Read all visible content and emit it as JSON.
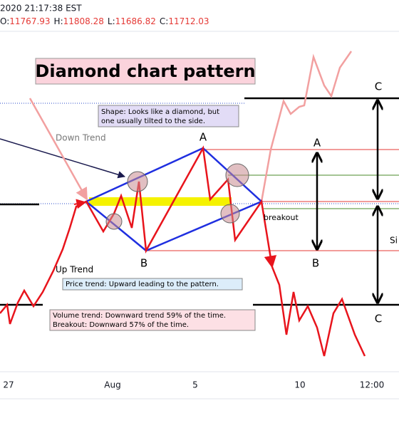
{
  "header": {
    "datetime": "2020 21:17:38 EST",
    "ohlc": [
      {
        "label": "O:",
        "value": "11767.93"
      },
      {
        "label": "H:",
        "value": "11808.28"
      },
      {
        "label": "L:",
        "value": "11686.82"
      },
      {
        "label": "C:",
        "value": "11712.03"
      }
    ]
  },
  "title": "Diamond chart pattern",
  "notes": {
    "shape": [
      "Shape: Looks like a diamond, but",
      "one usually tilted to the side."
    ],
    "price_trend": "Price trend: Upward leading to the pattern.",
    "volume": [
      "Volume trend: Downward trend 59% of the time.",
      "Breakout: Downward 57% of the time."
    ]
  },
  "labels": {
    "down_trend": "Down Trend",
    "up_trend": "Up Trend",
    "breakout": "breakout",
    "diamond_top": "A",
    "diamond_bottom": "B",
    "height_top": "A",
    "height_bottom": "B",
    "target_top": "C",
    "target_bottom": "C",
    "size": "Si"
  },
  "x_axis": [
    "27",
    "Aug",
    "5",
    "10",
    "12:00"
  ]
}
